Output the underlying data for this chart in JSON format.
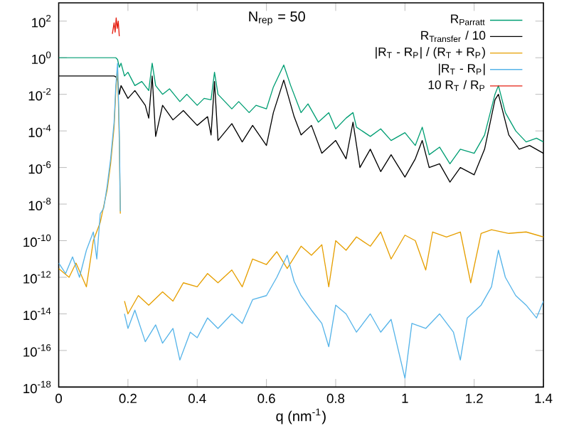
{
  "chart_data": {
    "type": "line",
    "xlabel": "q (nm$^{-1}$)",
    "annotations": [
      "N$_{rep}$ = 50"
    ],
    "log": "y",
    "legend": "top right",
    "grid": false,
    "xlim": [
      0,
      1.4
    ],
    "xticks": [
      0,
      0.2,
      0.4,
      0.6,
      0.8,
      1,
      1.2,
      1.4
    ],
    "ylim": [
      1e-18,
      1000
    ],
    "yticks": [
      {
        "value": 100,
        "label": "10$^{2}$"
      },
      {
        "value": 1,
        "label": "10$^{0}$"
      },
      {
        "value": 0.01,
        "label": "10$^{-2}$"
      },
      {
        "value": 0.0001,
        "label": "10$^{-4}$"
      },
      {
        "value": 1e-06,
        "label": "10$^{-6}$"
      },
      {
        "value": 1e-08,
        "label": "10$^{-8}$"
      },
      {
        "value": 1e-10,
        "label": "10$^{-10}$"
      },
      {
        "value": 1e-12,
        "label": "10$^{-12}$"
      },
      {
        "value": 1e-14,
        "label": "10$^{-14}$"
      },
      {
        "value": 1e-16,
        "label": "10$^{-16}$"
      },
      {
        "value": 1e-18,
        "label": "10$^{-18}$"
      }
    ],
    "series": [
      {
        "name": "R$_{Parratt}$",
        "color": "#009e73",
        "x": [
          0,
          0.16,
          0.165,
          0.17,
          0.175,
          0.18,
          0.19,
          0.2,
          0.22,
          0.24,
          0.26,
          0.27,
          0.28,
          0.3,
          0.32,
          0.35,
          0.37,
          0.4,
          0.42,
          0.44,
          0.45,
          0.46,
          0.5,
          0.52,
          0.55,
          0.57,
          0.6,
          0.62,
          0.65,
          0.67,
          0.7,
          0.72,
          0.75,
          0.78,
          0.8,
          0.83,
          0.85,
          0.86,
          0.9,
          0.93,
          0.96,
          1.0,
          1.03,
          1.05,
          1.07,
          1.1,
          1.13,
          1.16,
          1.2,
          1.23,
          1.26,
          1.27,
          1.29,
          1.32,
          1.35,
          1.38,
          1.4
        ],
        "values": [
          1,
          1,
          1,
          0.8,
          0.3,
          0.5,
          0.1,
          0.16,
          0.03,
          0.05,
          0.016,
          0.5,
          0.03,
          0.01,
          0.02,
          0.004,
          0.01,
          0.0025,
          0.006,
          0.005,
          0.16,
          0.01,
          0.0016,
          0.004,
          0.001,
          0.0025,
          0.0016,
          0.025,
          0.4,
          0.03,
          0.001,
          0.003,
          0.0003,
          0.001,
          0.00013,
          0.0005,
          0.001,
          0.00016,
          5e-05,
          0.00013,
          3e-05,
          8e-05,
          1.6e-05,
          0.00016,
          5e-06,
          1.3e-05,
          1.6e-06,
          1e-05,
          6e-06,
          6e-05,
          0.01,
          0.03,
          0.001,
          0.0001,
          2.5e-05,
          4e-05,
          2.5e-05
        ]
      },
      {
        "name": "R$_{Transfer}$ / 10",
        "color": "#000000",
        "x": [
          0,
          0.16,
          0.165,
          0.17,
          0.175,
          0.18,
          0.2,
          0.22,
          0.25,
          0.26,
          0.27,
          0.28,
          0.3,
          0.33,
          0.36,
          0.4,
          0.43,
          0.44,
          0.45,
          0.46,
          0.5,
          0.53,
          0.56,
          0.6,
          0.62,
          0.65,
          0.68,
          0.7,
          0.73,
          0.76,
          0.8,
          0.83,
          0.85,
          0.87,
          0.9,
          0.93,
          0.96,
          1.0,
          1.03,
          1.05,
          1.07,
          1.1,
          1.13,
          1.16,
          1.2,
          1.23,
          1.26,
          1.27,
          1.3,
          1.33,
          1.36,
          1.4
        ],
        "values": [
          0.1,
          0.1,
          0.09,
          0.06,
          0.01,
          0.03,
          0.006,
          0.016,
          0.0025,
          0.0005,
          0.1,
          5e-05,
          0.0025,
          0.0004,
          0.0013,
          0.0002,
          0.0006,
          6e-05,
          0.05,
          3e-05,
          0.00025,
          2.5e-05,
          0.0002,
          1.6e-05,
          0.001,
          0.06,
          0.0006,
          6e-05,
          0.0002,
          6e-06,
          3e-05,
          3e-06,
          0.0003,
          1e-06,
          1e-05,
          6e-07,
          5e-06,
          3e-07,
          3e-06,
          3e-05,
          1e-06,
          1.6e-06,
          1.6e-07,
          1e-06,
          4e-07,
          1e-05,
          0.005,
          0.01,
          6e-05,
          1e-05,
          1.6e-05,
          6e-06
        ]
      },
      {
        "name": "|R$_{T}$ - R$_{P}$| / (R$_{T}$ + R$_{P}$)",
        "color": "#e69f00",
        "x": [
          0,
          0.03,
          0.05,
          0.08,
          0.1,
          0.12,
          0.14,
          0.15,
          0.16,
          0.165,
          0.17,
          0.175,
          0.178,
          0.185,
          0.19,
          0.2,
          0.23,
          0.26,
          0.3,
          0.33,
          0.36,
          0.4,
          0.43,
          0.46,
          0.5,
          0.53,
          0.56,
          0.6,
          0.63,
          0.66,
          0.7,
          0.73,
          0.76,
          0.78,
          0.8,
          0.83,
          0.86,
          0.9,
          0.93,
          0.96,
          1.0,
          1.03,
          1.06,
          1.08,
          1.12,
          1.16,
          1.19,
          1.22,
          1.25,
          1.3,
          1.35,
          1.4
        ],
        "values": [
          3e-12,
          1e-12,
          6e-12,
          3e-13,
          1e-10,
          1e-09,
          6e-08,
          1.6e-06,
          0.00016,
          0.016,
          0.3,
          3e-05,
          3e-09,
          null,
          5e-14,
          1e-14,
          1e-13,
          3e-14,
          1.6e-13,
          5e-14,
          5e-13,
          3e-13,
          1.6e-12,
          5e-13,
          2.5e-12,
          3e-13,
          1e-11,
          5e-12,
          2.5e-11,
          3e-12,
          5e-11,
          1.6e-11,
          6e-11,
          3e-13,
          1e-10,
          3e-11,
          1.6e-10,
          5e-11,
          3e-10,
          1e-11,
          2e-10,
          1e-10,
          2.5e-12,
          3e-10,
          1.6e-10,
          3e-10,
          5e-13,
          2.5e-10,
          4e-10,
          2.5e-10,
          3e-10,
          1.6e-10
        ]
      },
      {
        "name": "|R$_{T}$ - R$_{P}$|",
        "color": "#56b4e9",
        "x": [
          0,
          0.02,
          0.04,
          0.06,
          0.08,
          0.1,
          0.11,
          0.12,
          0.13,
          0.14,
          0.15,
          0.16,
          0.165,
          0.17,
          0.175,
          0.178,
          0.185,
          0.19,
          0.2,
          0.22,
          0.25,
          0.28,
          0.3,
          0.33,
          0.35,
          0.38,
          0.4,
          0.43,
          0.46,
          0.5,
          0.53,
          0.56,
          0.6,
          0.63,
          0.66,
          0.68,
          0.7,
          0.73,
          0.76,
          0.78,
          0.8,
          0.83,
          0.86,
          0.9,
          0.93,
          0.96,
          1.0,
          1.02,
          1.06,
          1.1,
          1.14,
          1.16,
          1.18,
          1.22,
          1.25,
          1.27,
          1.29,
          1.32,
          1.35,
          1.38,
          1.4
        ],
        "values": [
          6e-12,
          1.6e-12,
          1.3e-11,
          1e-12,
          3e-11,
          3e-10,
          1e-11,
          3e-09,
          6e-09,
          1e-07,
          3e-06,
          0.0003,
          0.03,
          0.5,
          0.0001,
          4e-09,
          null,
          1e-14,
          1.6e-15,
          1.6e-14,
          3e-16,
          2.5e-15,
          2.5e-16,
          1.6e-15,
          3e-17,
          1e-15,
          5e-16,
          6e-15,
          1.6e-15,
          1e-14,
          3e-15,
          6e-14,
          1e-13,
          1e-12,
          1.6e-11,
          6e-13,
          1e-13,
          1.6e-14,
          3e-15,
          1.6e-16,
          3e-14,
          1e-14,
          1e-15,
          1e-14,
          1e-15,
          5e-15,
          3e-18,
          3e-15,
          1.6e-15,
          1e-14,
          1e-15,
          3e-17,
          6e-15,
          3e-14,
          3e-13,
          3e-11,
          1e-12,
          1e-13,
          3e-14,
          6e-15,
          5e-14
        ]
      },
      {
        "name": "10 R$_{T}$ / R$_{P}$",
        "color": "#e51e10",
        "x": [
          0.155,
          0.16,
          0.163,
          0.166,
          0.169,
          0.172,
          0.175
        ],
        "values": [
          20,
          80,
          25,
          150,
          40,
          100,
          15
        ]
      }
    ]
  }
}
